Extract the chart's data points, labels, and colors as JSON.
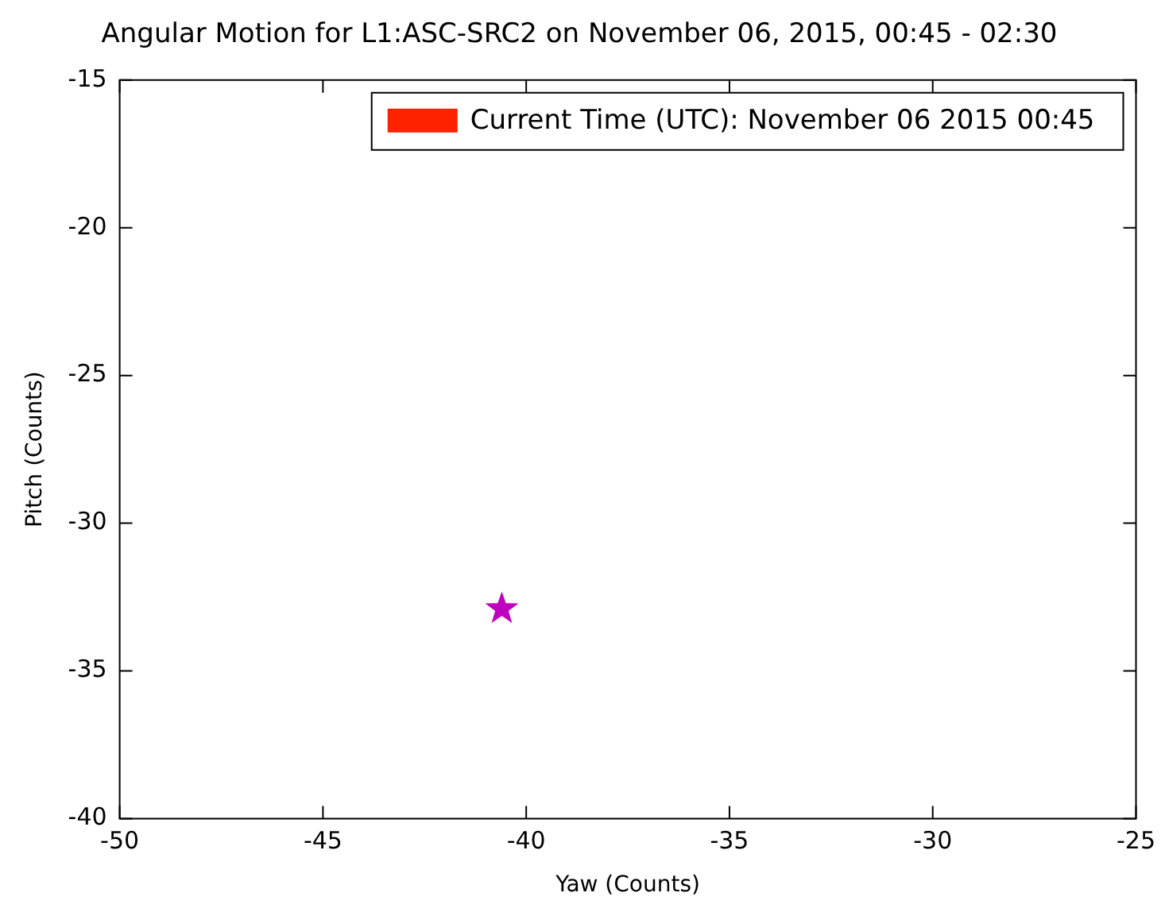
{
  "chart_data": {
    "type": "scatter",
    "title": "Angular Motion for L1:ASC-SRC2 on November 06, 2015, 00:45 - 02:30",
    "xlabel": "Yaw (Counts)",
    "ylabel": "Pitch (Counts)",
    "series": [
      {
        "color": "#bf00bf",
        "x": [
          -40.6
        ],
        "values": [
          -32.9
        ]
      },
      {
        "name": "Current Time (UTC): November 06 2015 00:45",
        "color": "#ff2200"
      }
    ],
    "marker": "star",
    "legend": "top right",
    "grid": false,
    "xlim": [
      -50,
      -25
    ],
    "xticks": [
      -50,
      -45,
      -40,
      -35,
      -30,
      -25
    ],
    "ylim": [
      -40,
      -15
    ],
    "yticks": [
      -40,
      -35,
      -30,
      -25,
      -20,
      -15
    ]
  }
}
